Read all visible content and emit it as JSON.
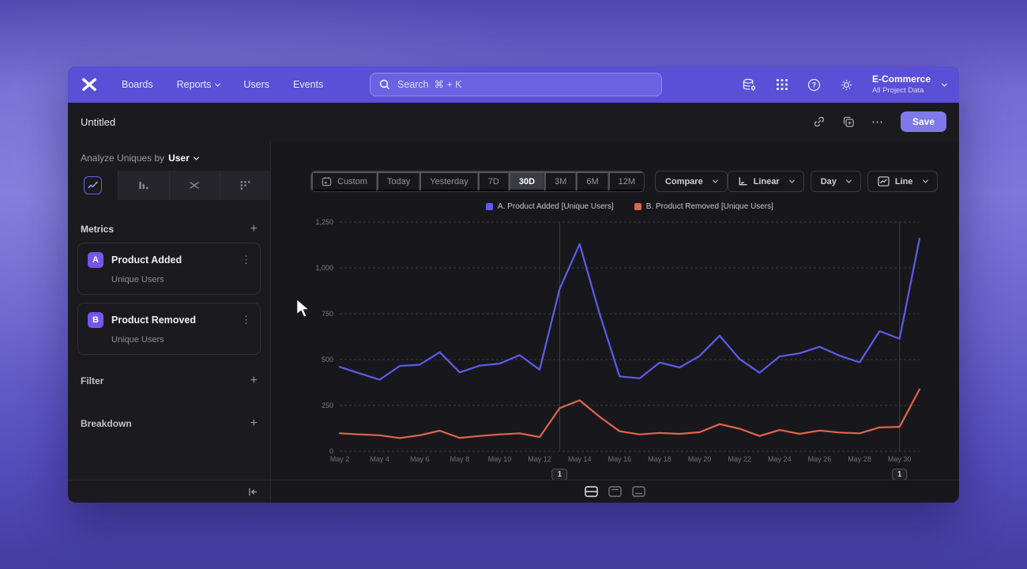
{
  "nav": {
    "brand": "mixpanel-logo",
    "items": [
      {
        "label": "Boards",
        "chevron": false
      },
      {
        "label": "Reports",
        "chevron": true
      },
      {
        "label": "Users",
        "chevron": false
      },
      {
        "label": "Events",
        "chevron": false
      }
    ],
    "search_placeholder": "Search  ⌘ + K",
    "project_name": "E-Commerce",
    "project_subtitle": "All Project Data"
  },
  "toolbar": {
    "title": "Untitled",
    "save_label": "Save",
    "ellipsis": "⋯"
  },
  "sidebar": {
    "analyze_prefix": "Analyze Uniques by",
    "analyze_value": "User",
    "chart_tabs": [
      "insights-line",
      "bar",
      "flow",
      "funnel-dots"
    ],
    "selected_tab": "insights-line",
    "metrics_header": "Metrics",
    "metrics": [
      {
        "badge": "A",
        "name": "Product Added",
        "subtitle": "Unique Users",
        "kebab": "⋮"
      },
      {
        "badge": "B",
        "name": "Product Removed",
        "subtitle": "Unique Users",
        "kebab": "⋮"
      }
    ],
    "plus_glyph": "+",
    "filter_label": "Filter",
    "breakdown_label": "Breakdown"
  },
  "controls": {
    "ranges": [
      "Custom",
      "Today",
      "Yesterday",
      "7D",
      "30D",
      "3M",
      "6M",
      "12M"
    ],
    "selected_range": "30D",
    "compare_label": "Compare",
    "scale_label": "Linear",
    "interval_label": "Day",
    "chart_type_label": "Line"
  },
  "legend": [
    {
      "label": "A. Product Added [Unique Users]",
      "color": "#5f5bee"
    },
    {
      "label": "B. Product Removed [Unique Users]",
      "color": "#e0654c"
    }
  ],
  "chart_data": {
    "type": "line",
    "title": "",
    "xlabel": "",
    "ylabel": "Unique Users",
    "grid": "dashed-horizontal",
    "legend_position": "top-center",
    "ylim": [
      0,
      1250
    ],
    "yticks": [
      {
        "v": 0,
        "label": "0"
      },
      {
        "v": 250,
        "label": "250"
      },
      {
        "v": 500,
        "label": "500"
      },
      {
        "v": 750,
        "label": "750"
      },
      {
        "v": 1000,
        "label": "1,000"
      },
      {
        "v": 1250,
        "label": "1,250"
      }
    ],
    "x": [
      "May 2",
      "May 3",
      "May 4",
      "May 5",
      "May 6",
      "May 7",
      "May 8",
      "May 9",
      "May 10",
      "May 11",
      "May 12",
      "May 13",
      "May 14",
      "May 15",
      "May 16",
      "May 17",
      "May 18",
      "May 19",
      "May 20",
      "May 21",
      "May 22",
      "May 23",
      "May 24",
      "May 25",
      "May 26",
      "May 27",
      "May 28",
      "May 29",
      "May 30",
      "May 31"
    ],
    "x_tick_step": 2,
    "series": [
      {
        "name": "A. Product Added [Unique Users]",
        "color": "#5f5bee",
        "values": [
          460,
          425,
          390,
          465,
          472,
          540,
          430,
          467,
          478,
          524,
          445,
          885,
          1130,
          750,
          408,
          398,
          484,
          457,
          520,
          630,
          503,
          428,
          517,
          534,
          570,
          521,
          485,
          655,
          614,
          1160
        ]
      },
      {
        "name": "B. Product Removed [Unique Users]",
        "color": "#e0654c",
        "values": [
          98,
          92,
          87,
          72,
          87,
          112,
          73,
          83,
          92,
          98,
          77,
          235,
          278,
          188,
          109,
          92,
          100,
          95,
          104,
          148,
          123,
          83,
          116,
          95,
          113,
          102,
          98,
          130,
          133,
          338
        ]
      }
    ],
    "annotations": [
      {
        "x": "May 13",
        "label": "1"
      },
      {
        "x": "May 30",
        "label": "1"
      }
    ]
  },
  "colors": {
    "nav_accent": "#5a4fd7",
    "save_button": "#7f78ea",
    "window_bg": "#18181c"
  }
}
